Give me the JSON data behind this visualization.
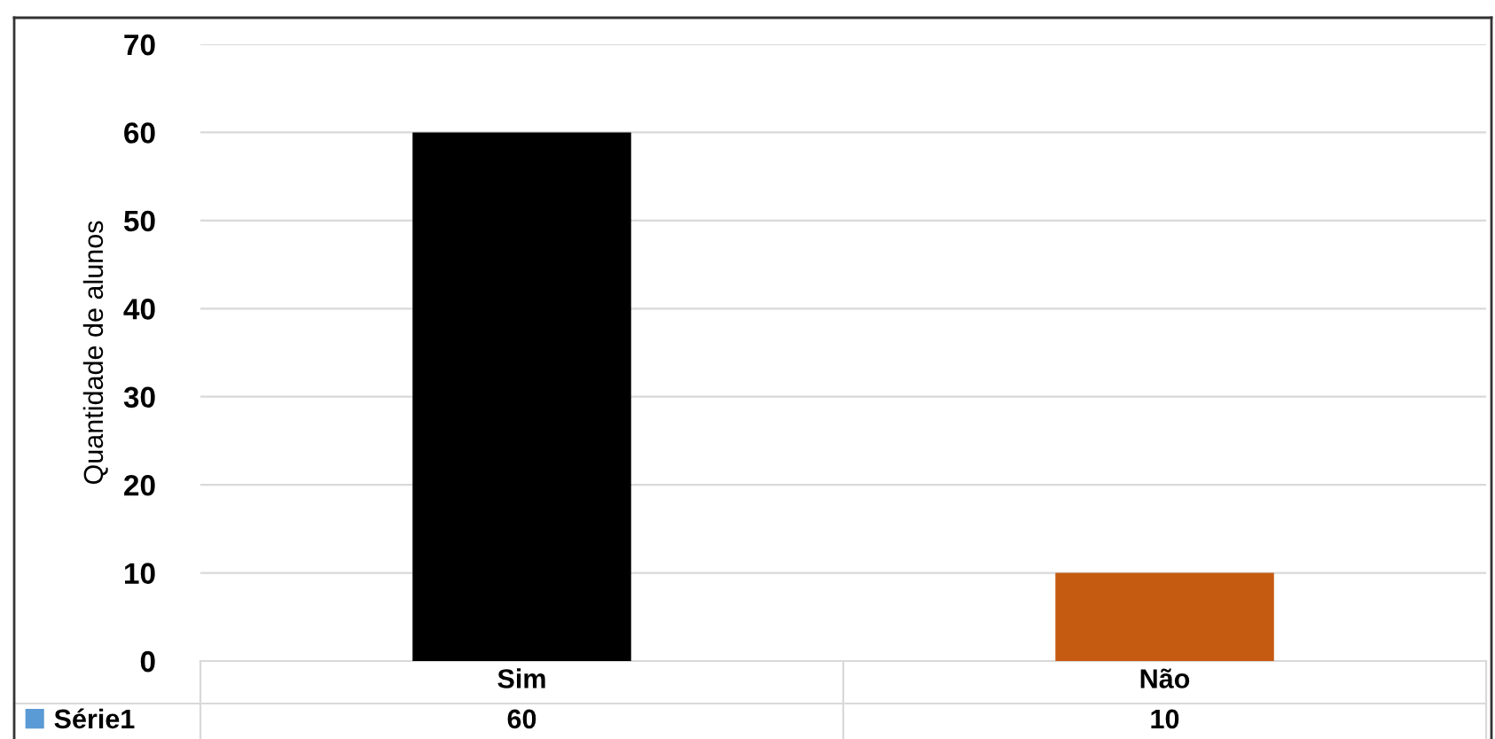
{
  "chart_data": {
    "type": "bar",
    "ylabel": "Quantidade de alunos",
    "categories": [
      "Sim",
      "Não"
    ],
    "series": [
      {
        "name": "Série1",
        "color": "#5b9bd5",
        "colors": [
          "#000000",
          "#c55a11"
        ],
        "values": [
          60,
          10
        ]
      }
    ],
    "ylim": [
      0,
      70
    ],
    "yticks": [
      0,
      10,
      20,
      30,
      40,
      50,
      60,
      70
    ],
    "grid": "y",
    "data_labels": true,
    "legend": "bottom left"
  }
}
